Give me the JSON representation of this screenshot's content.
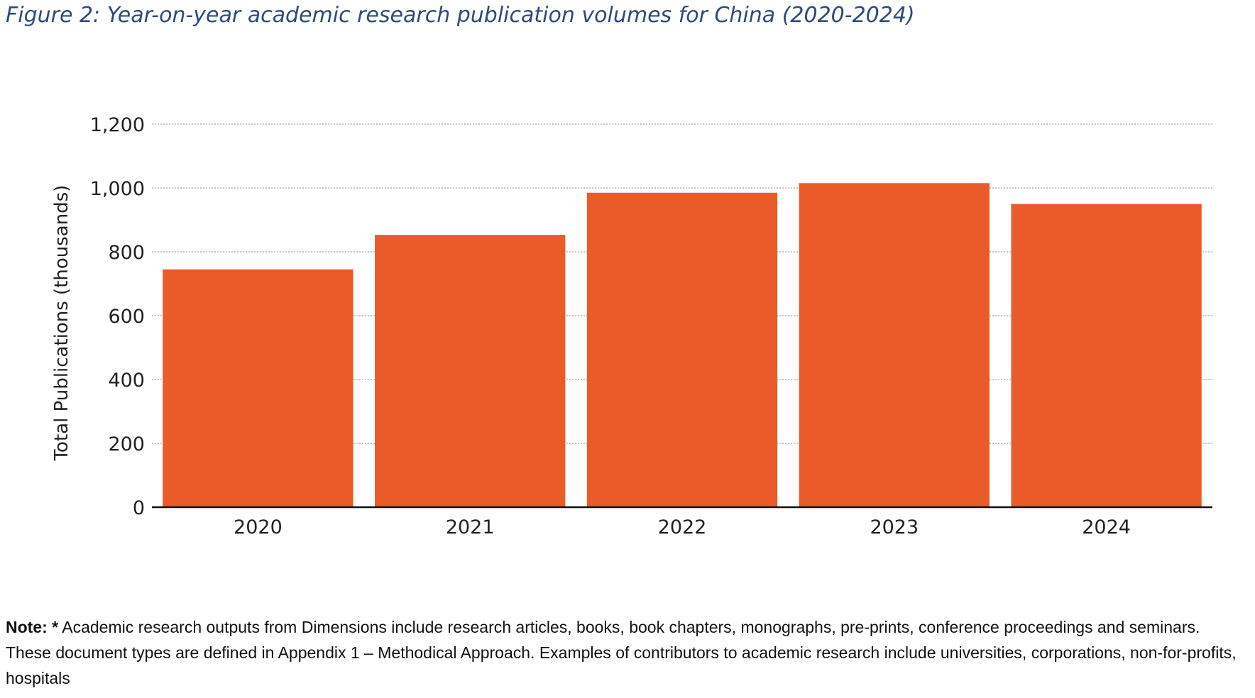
{
  "figure": {
    "title": "Figure 2: Year-on-year academic research publication volumes for China (2020-2024)"
  },
  "chart_data": {
    "type": "bar",
    "title": "Figure 2: Year-on-year academic research publication volumes for China (2020-2024)",
    "categories": [
      "2020",
      "2021",
      "2022",
      "2023",
      "2024"
    ],
    "values": [
      745,
      853,
      985,
      1015,
      950
    ],
    "xlabel": "",
    "ylabel": "Total Publications (thousands)",
    "ylim": [
      0,
      1200
    ],
    "yticks": [
      0,
      200,
      400,
      600,
      800,
      1000,
      1200
    ],
    "ytick_labels": [
      "0",
      "200",
      "400",
      "600",
      "800",
      "1,000",
      "1,200"
    ],
    "grid": true,
    "legend": "none",
    "bar_color": "#eb5b2a"
  },
  "note": {
    "label": "Note: *",
    "text": " Academic research outputs from Dimensions include research articles, books, book chapters, monographs, pre-prints, conference proceedings and seminars. These document types are defined in Appendix 1 – Methodical Approach. Examples of contributors to academic research include universities, corporations, non-for-profits, hospitals"
  }
}
